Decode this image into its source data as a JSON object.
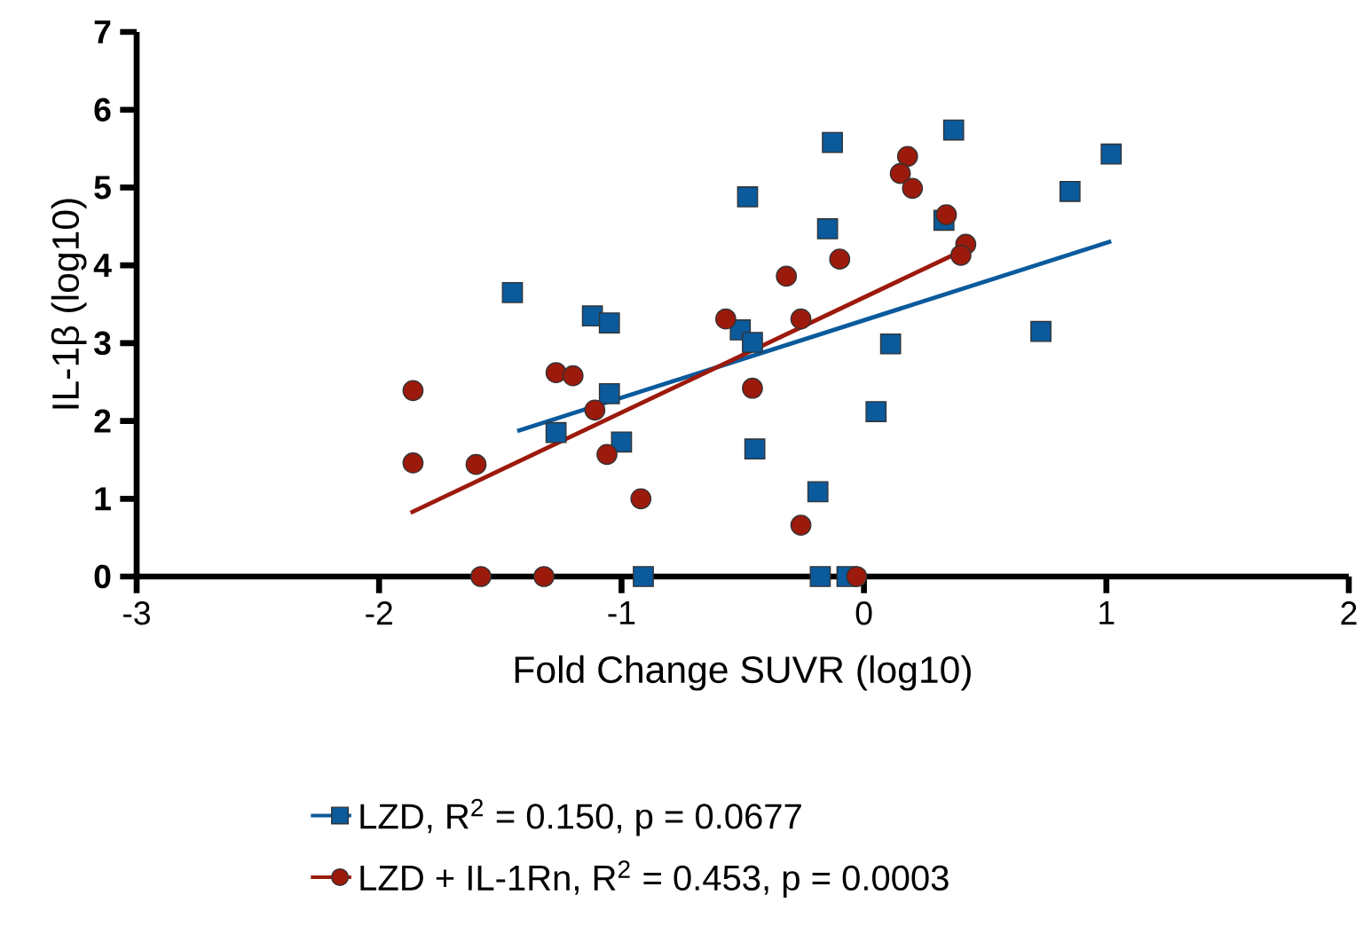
{
  "chart_data": {
    "type": "scatter",
    "xlabel": "Fold Change SUVR (log10)",
    "ylabel": "IL-1β (log10)",
    "xlim": [
      -3,
      2
    ],
    "xticks": [
      -3,
      -2,
      -1,
      0,
      1,
      2
    ],
    "ylim": [
      0,
      7
    ],
    "yticks": [
      0,
      1,
      2,
      3,
      4,
      5,
      6,
      7
    ],
    "grid": false,
    "legend": "bottom",
    "series": [
      {
        "name": "LZD, R$^{2}$ = 0.150, p = 0.0677",
        "marker": "square",
        "color": "#0a5a9c",
        "x": [
          -0.13,
          -0.48,
          -0.15,
          -1.45,
          -1.12,
          -1.05,
          -0.51,
          -0.46,
          -1.05,
          -1.27,
          -1.0,
          -0.45,
          -0.19,
          -0.91,
          -0.18,
          -0.07,
          0.37,
          1.02,
          0.85,
          0.33,
          0.73,
          0.11,
          0.05
        ],
        "values": [
          5.58,
          4.88,
          4.47,
          3.65,
          3.35,
          3.26,
          3.17,
          3.01,
          2.35,
          1.85,
          1.73,
          1.64,
          1.09,
          0,
          0,
          0,
          5.74,
          5.43,
          4.95,
          4.58,
          3.15,
          2.99,
          2.12
        ]
      },
      {
        "name": "LZD + IL-1Rn, R$^{2}$ = 0.453, p = 0.0003",
        "marker": "circle",
        "color": "#9c1a0c",
        "x": [
          -1.86,
          -1.86,
          -1.6,
          -1.58,
          -1.32,
          -1.27,
          -1.2,
          -1.11,
          -1.06,
          -0.92,
          -0.57,
          -0.32,
          -0.26,
          -0.46,
          -0.26,
          -0.1,
          -0.03,
          0.18,
          0.15,
          0.2,
          0.34,
          0.42,
          0.4
        ],
        "values": [
          2.39,
          1.46,
          1.44,
          0,
          0,
          2.62,
          2.58,
          2.14,
          1.57,
          1.0,
          3.31,
          3.86,
          3.31,
          2.42,
          0.66,
          4.08,
          0,
          5.4,
          5.18,
          4.99,
          4.65,
          4.27,
          4.13
        ]
      },
      {
        "type": "line",
        "color": "#0a5a9c",
        "x": [
          -1.43,
          1.02
        ],
        "values": [
          1.87,
          4.31
        ]
      },
      {
        "type": "line",
        "color": "#9c1a0c",
        "x": [
          -1.87,
          0.38
        ],
        "values": [
          0.82,
          4.15
        ]
      }
    ]
  }
}
